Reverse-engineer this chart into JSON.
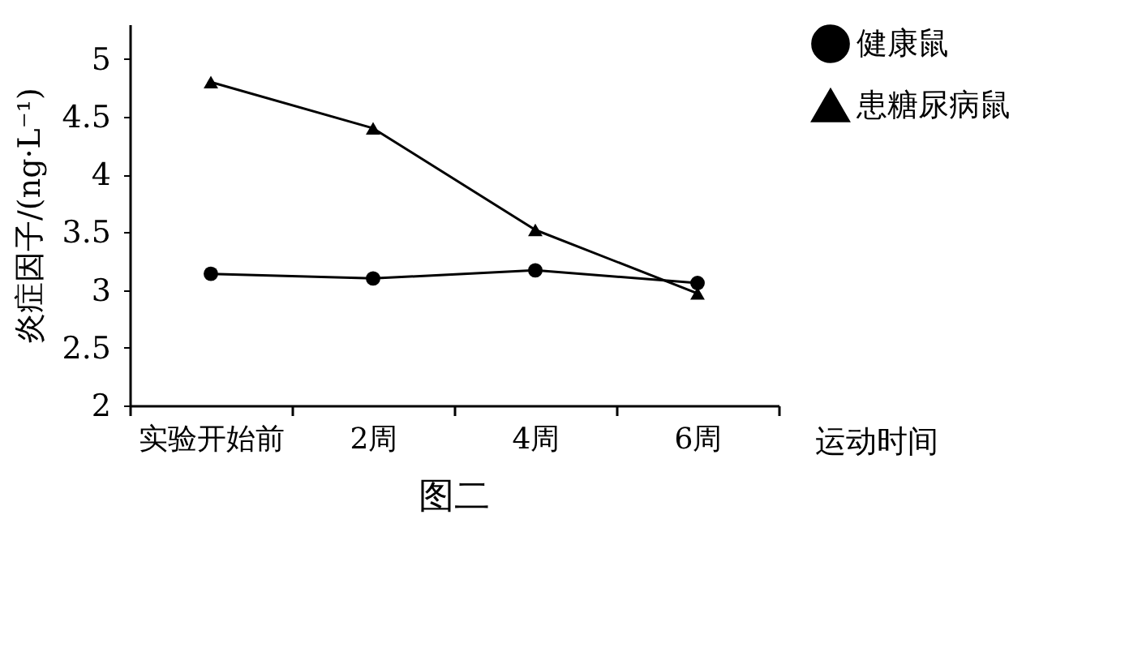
{
  "chart_data": {
    "type": "line",
    "title": "图二",
    "xlabel": "运动时间",
    "ylabel": "炎症因子/(ng·L⁻¹)",
    "categories": [
      "实验开始前",
      "2周",
      "4周",
      "6周"
    ],
    "series": [
      {
        "name": "健康鼠",
        "color": "#000000",
        "marker": "circle",
        "values": [
          3.14,
          3.1,
          3.17,
          3.06
        ]
      },
      {
        "name": "患糖尿病鼠",
        "color": "#000000",
        "marker": "triangle",
        "values": [
          4.8,
          4.4,
          3.52,
          2.97
        ]
      }
    ],
    "ylim": [
      2,
      5.3
    ],
    "yticks": [
      2,
      2.5,
      3,
      3.5,
      4,
      4.5,
      5
    ],
    "grid": false,
    "legend": "right",
    "line_style": "solid"
  }
}
